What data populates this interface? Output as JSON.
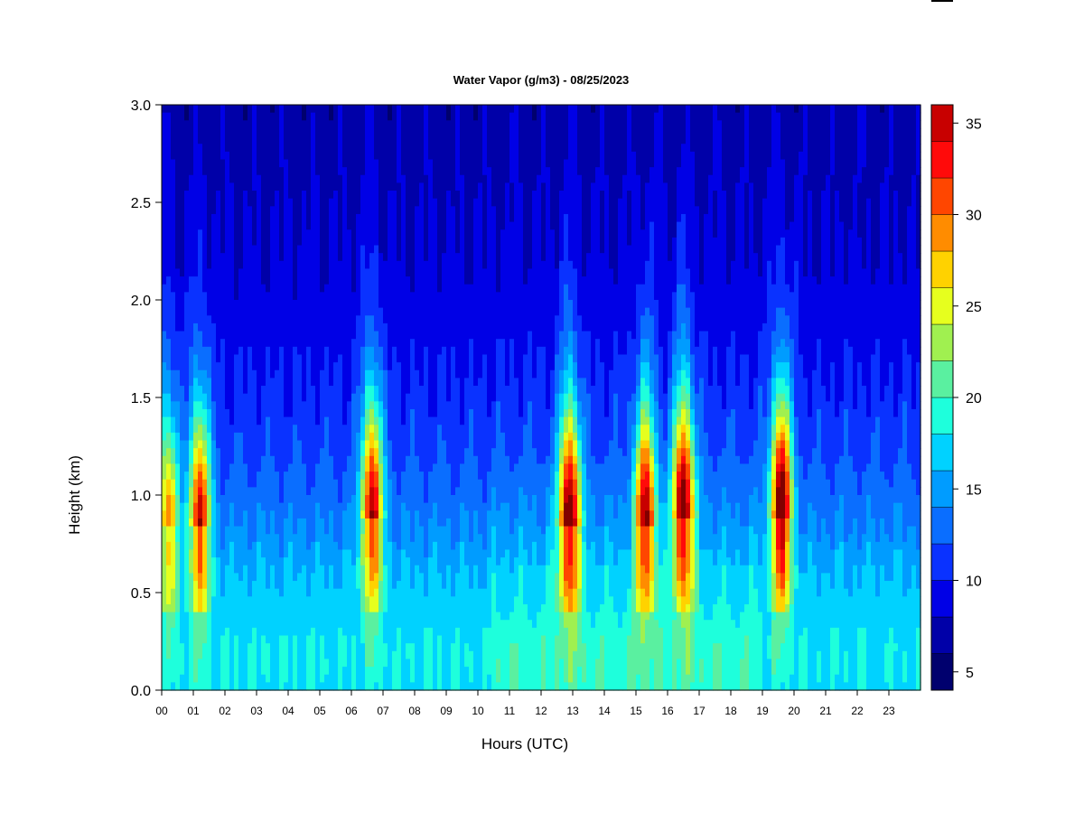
{
  "chart_data": {
    "type": "heatmap",
    "title": "Water Vapor (g/m3) - 08/25/2023",
    "xlabel": "Hours (UTC)",
    "ylabel": "Height (km)",
    "xlim": [
      0,
      24
    ],
    "ylim": [
      0,
      3.0
    ],
    "x_ticks": [
      "00",
      "01",
      "02",
      "03",
      "04",
      "05",
      "06",
      "07",
      "08",
      "09",
      "10",
      "11",
      "12",
      "13",
      "14",
      "15",
      "16",
      "17",
      "18",
      "19",
      "20",
      "21",
      "22",
      "23"
    ],
    "y_ticks": [
      "0.0",
      "0.5",
      "1.0",
      "1.5",
      "2.0",
      "2.5",
      "3.0"
    ],
    "colorbar": {
      "levels": [
        4,
        6,
        8,
        10,
        12,
        14,
        16,
        18,
        20,
        22,
        24,
        26,
        28,
        30,
        32,
        34,
        36
      ],
      "tick_labels": [
        "5",
        "10",
        "15",
        "20",
        "25",
        "30",
        "35"
      ],
      "colors": [
        "#00006e",
        "#0000a8",
        "#0000e6",
        "#0a32ff",
        "#0a6eff",
        "#009cff",
        "#00d2ff",
        "#1effdc",
        "#5af0a0",
        "#a0f050",
        "#e6ff1e",
        "#ffd200",
        "#ff8c00",
        "#ff4600",
        "#ff0a0a",
        "#c80000",
        "#820000"
      ]
    },
    "plumes": [
      {
        "hour": 0.2,
        "peak_km": 0.85,
        "peak_value": 26
      },
      {
        "hour": 1.2,
        "peak_km": 0.85,
        "peak_value": 30
      },
      {
        "hour": 6.65,
        "peak_km": 0.9,
        "peak_value": 31
      },
      {
        "hour": 12.9,
        "peak_km": 0.85,
        "peak_value": 33
      },
      {
        "hour": 15.3,
        "peak_km": 0.85,
        "peak_value": 31
      },
      {
        "hour": 16.5,
        "peak_km": 0.9,
        "peak_value": 33
      },
      {
        "hour": 19.6,
        "peak_km": 0.9,
        "peak_value": 34
      }
    ]
  }
}
